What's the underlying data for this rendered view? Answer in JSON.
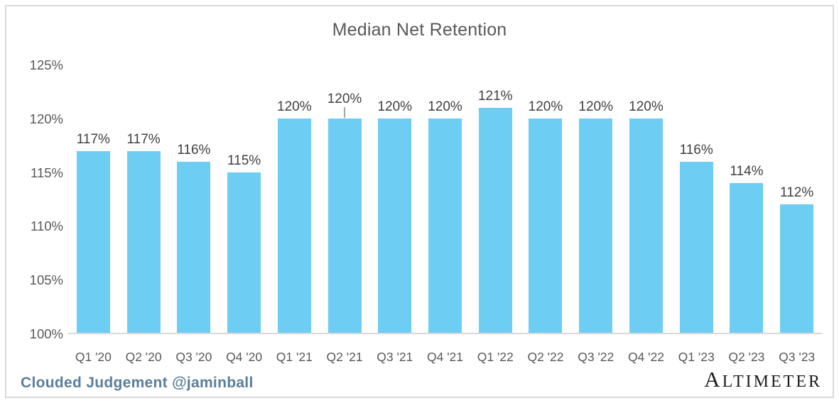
{
  "chart_data": {
    "type": "bar",
    "title": "Median Net Retention",
    "categories": [
      "Q1 '20",
      "Q2 '20",
      "Q3 '20",
      "Q4 '20",
      "Q1 '21",
      "Q2 '21",
      "Q3 '21",
      "Q4 '21",
      "Q1 '22",
      "Q2 '22",
      "Q3 '22",
      "Q4 '22",
      "Q1 '23",
      "Q2 '23",
      "Q3 '23"
    ],
    "values": [
      117,
      117,
      116,
      115,
      120,
      120,
      120,
      120,
      121,
      120,
      120,
      120,
      116,
      114,
      112
    ],
    "value_suffix": "%",
    "xlabel": "",
    "ylabel": "",
    "ylim": [
      100,
      125
    ],
    "yticks": [
      125,
      120,
      115,
      110,
      105,
      100
    ],
    "ytick_suffix": "%",
    "grid": false,
    "legend": false,
    "bar_color": "#6ecdf3",
    "data_label_color": "#404040",
    "axis_label_color": "#595959",
    "axis_line_color": "#d9d9d9",
    "callout_index": 5
  },
  "footer": {
    "credit": "Clouded Judgement @jaminball",
    "credit_color": "#5a7e9b",
    "brand": "ALTIMETER",
    "brand_color": "#1c1c1c"
  }
}
